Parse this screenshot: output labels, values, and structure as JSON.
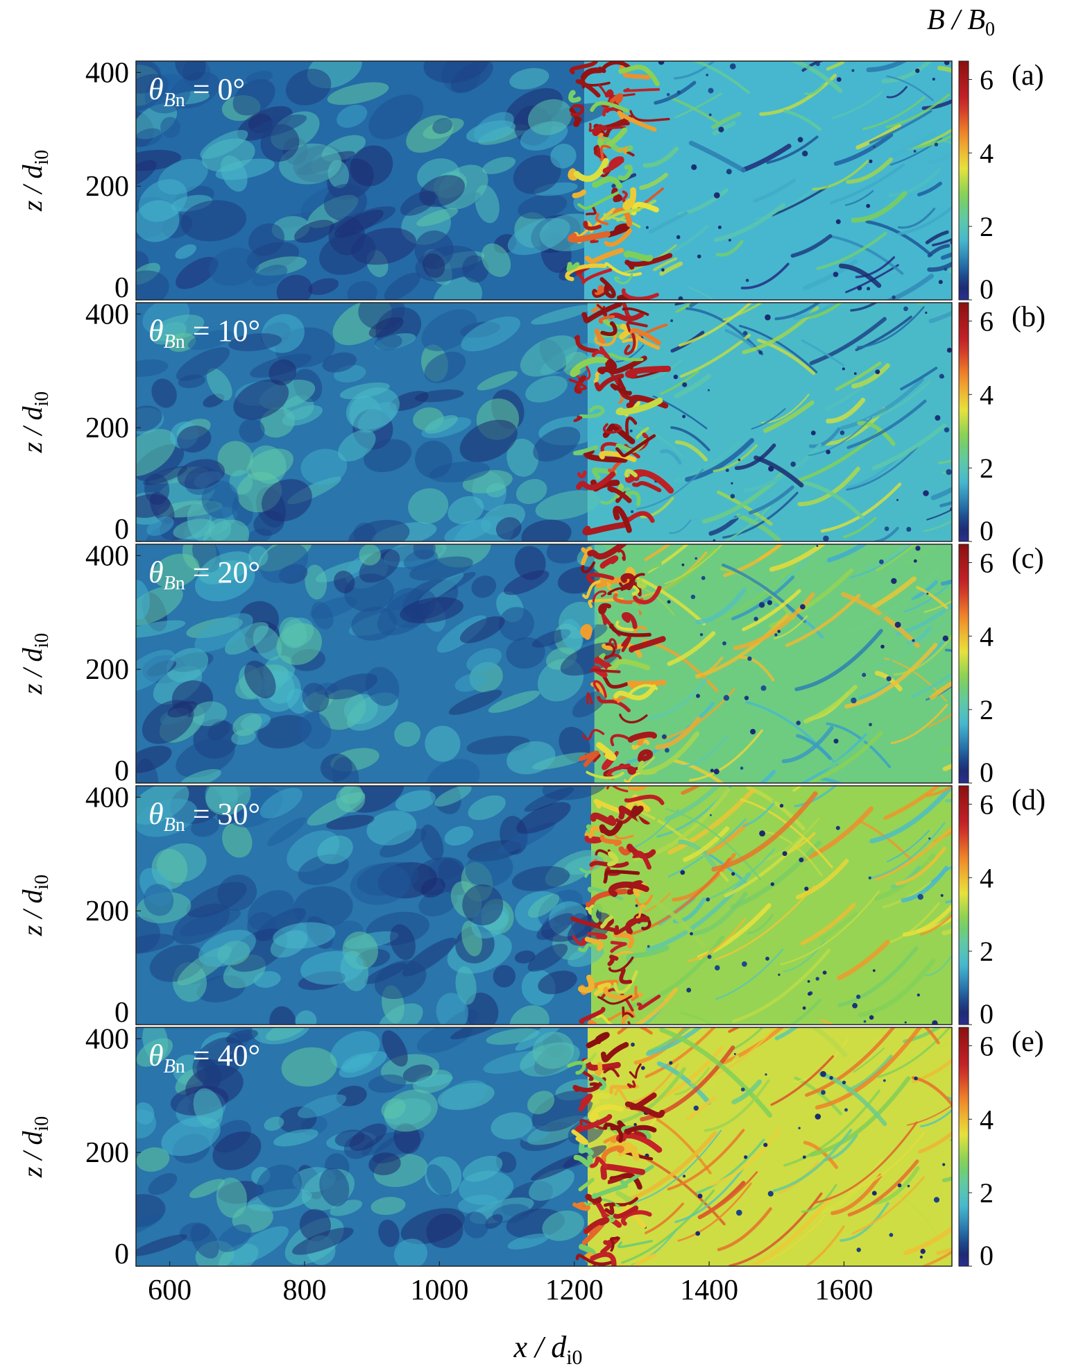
{
  "figure": {
    "xlabel": "x / d",
    "xlabel_sub": "i0",
    "ylabel": "z / d",
    "ylabel_sub": "i0",
    "colorbar_label": "B / B",
    "colorbar_label_sub": "0",
    "colormap": [
      "#2b2f8f",
      "#1b2a6e",
      "#1f5fa0",
      "#46b7cf",
      "#5fc9a8",
      "#7ccf5a",
      "#e9e23c",
      "#f08a2a",
      "#c8232a",
      "#8a1010"
    ]
  },
  "chart_data": {
    "type": "heatmap",
    "quantity": "B / B0",
    "xlabel": "x / d_i0",
    "ylabel": "z / d_i0",
    "xlim": [
      550,
      1760
    ],
    "ylim": [
      0,
      420
    ],
    "xticks": [
      600,
      800,
      1000,
      1200,
      1400,
      1600
    ],
    "yticks": [
      0,
      200,
      400
    ],
    "colorbar": {
      "range": [
        0,
        6.5
      ],
      "ticks": [
        0,
        2,
        4,
        6
      ]
    },
    "panels": [
      {
        "label": "(a)",
        "theta_Bn": "0°",
        "shock_x": 1215,
        "downstream_level": 1.6,
        "upstream_level": 0.9,
        "filament_tilt": 0.1
      },
      {
        "label": "(b)",
        "theta_Bn": "10°",
        "shock_x": 1220,
        "downstream_level": 1.7,
        "upstream_level": 1.0,
        "filament_tilt": 0.25
      },
      {
        "label": "(c)",
        "theta_Bn": "20°",
        "shock_x": 1230,
        "downstream_level": 2.5,
        "upstream_level": 1.0,
        "filament_tilt": 0.45
      },
      {
        "label": "(d)",
        "theta_Bn": "30°",
        "shock_x": 1225,
        "downstream_level": 3.0,
        "upstream_level": 1.0,
        "filament_tilt": 0.6
      },
      {
        "label": "(e)",
        "theta_Bn": "40°",
        "shock_x": 1220,
        "downstream_level": 3.4,
        "upstream_level": 1.0,
        "filament_tilt": 0.75
      }
    ]
  }
}
